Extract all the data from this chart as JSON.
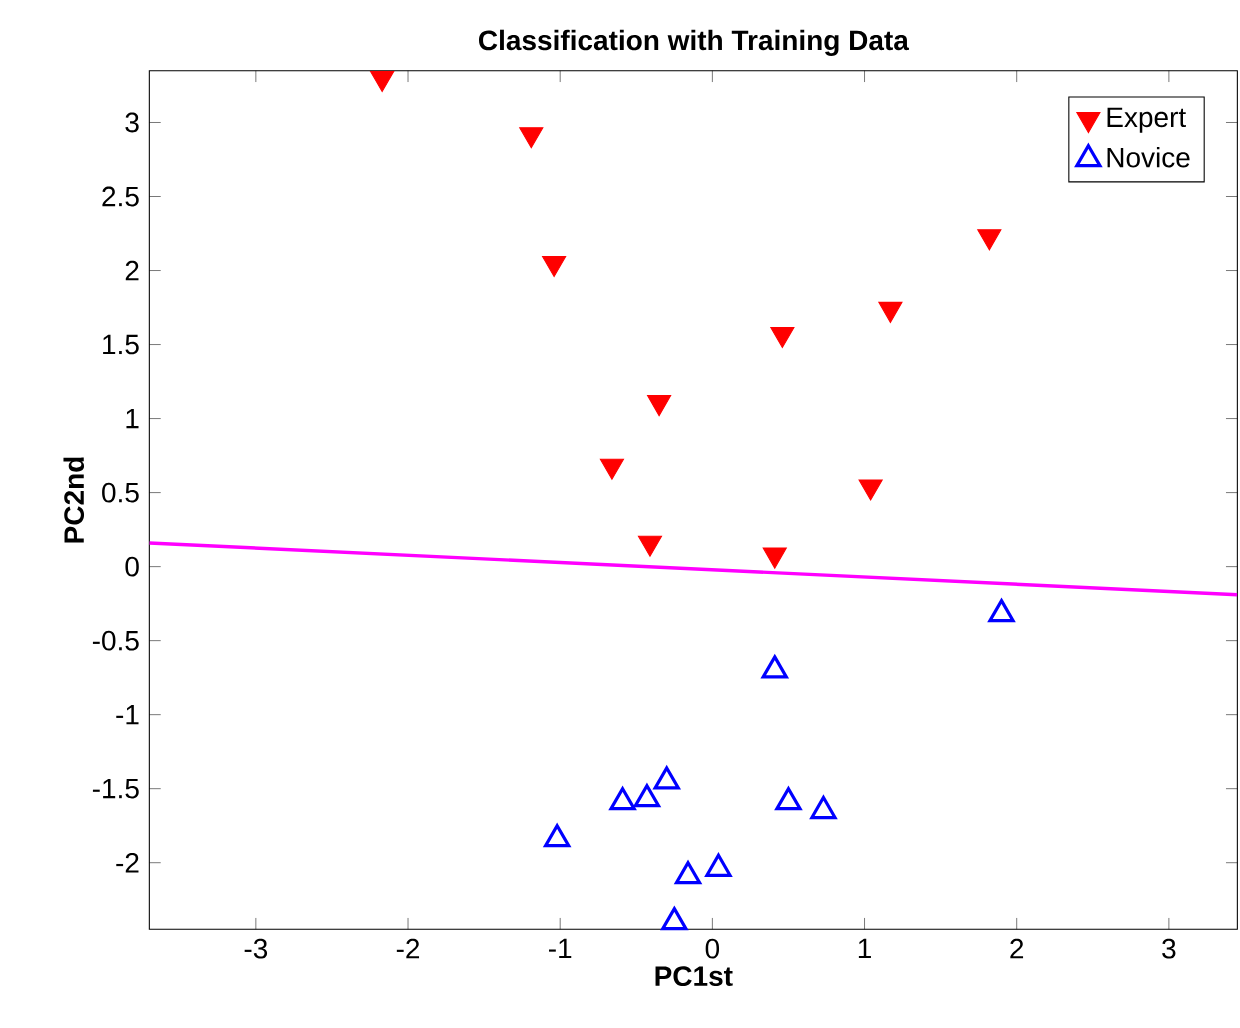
{
  "chart_data": {
    "type": "scatter",
    "title": "Classification with Training Data",
    "xlabel": "PC1st",
    "ylabel": "PC2nd",
    "xlim": [
      -3.7,
      3.45
    ],
    "ylim": [
      -2.45,
      3.35
    ],
    "xticks": [
      -3,
      -2,
      -1,
      0,
      1,
      2,
      3
    ],
    "yticks": [
      -2,
      -1.5,
      -1,
      -0.5,
      0,
      0.5,
      1,
      1.5,
      2,
      2.5,
      3
    ],
    "legend": "top right",
    "grid": false,
    "series": [
      {
        "name": "Expert",
        "color": "#ff0000",
        "marker": "triangle_down",
        "x": [
          -2.17,
          -1.19,
          -1.04,
          0.46,
          1.17,
          1.82,
          -0.35,
          -0.66,
          -0.41,
          0.41,
          1.04
        ],
        "values": [
          3.3,
          2.92,
          2.05,
          1.57,
          1.74,
          2.23,
          1.11,
          0.68,
          0.16,
          0.08,
          0.54
        ]
      },
      {
        "name": "Novice",
        "color": "#0000ff",
        "marker": "triangle",
        "x": [
          1.9,
          0.41,
          -1.02,
          -0.59,
          -0.43,
          -0.3,
          0.5,
          0.73,
          -0.16,
          0.04,
          -0.25
        ],
        "values": [
          -0.32,
          -0.7,
          -1.84,
          -1.59,
          -1.57,
          -1.45,
          -1.59,
          -1.65,
          -2.09,
          -2.04,
          -2.4
        ]
      },
      {
        "type": "line",
        "color": "#ff00ff",
        "x": [
          -3.7,
          3.45
        ],
        "values": [
          0.16,
          -0.19
        ]
      }
    ]
  }
}
